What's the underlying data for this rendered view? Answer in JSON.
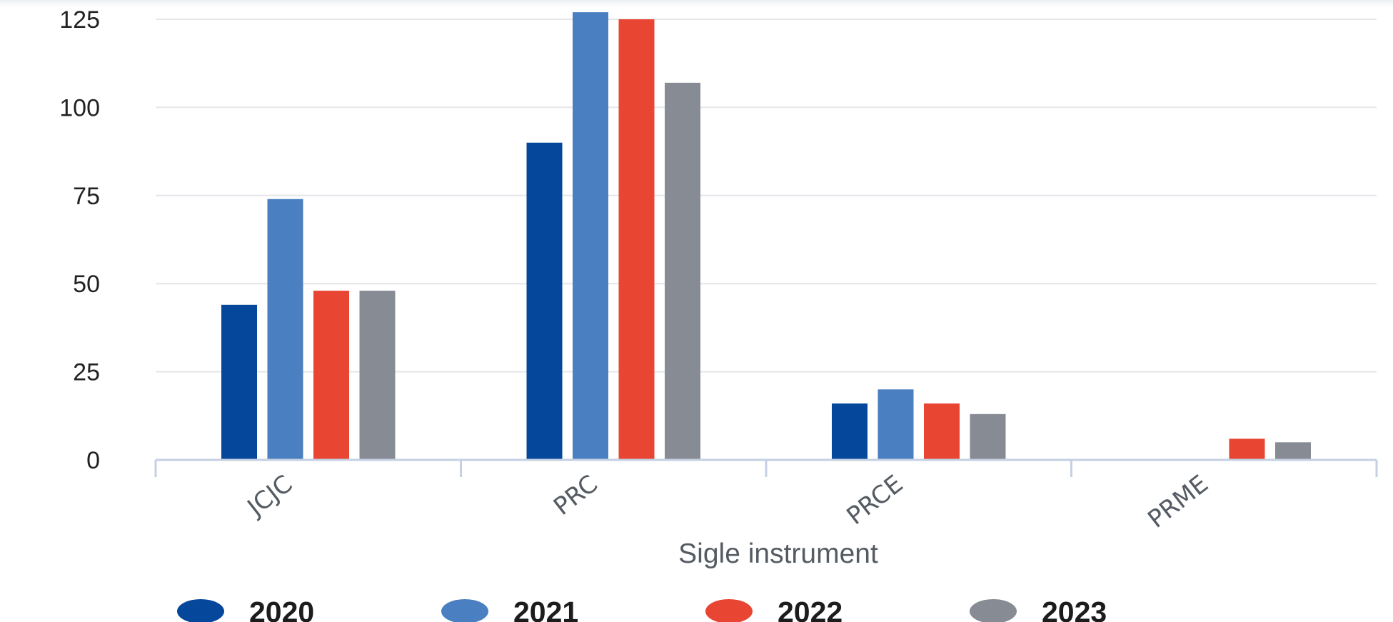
{
  "chart_data": {
    "type": "bar",
    "title": "",
    "xlabel": "Sigle instrument",
    "ylabel": "",
    "ylim": [
      0,
      125
    ],
    "yticks": [
      0,
      25,
      50,
      75,
      100,
      125
    ],
    "grid": true,
    "legend_position": "bottom-left",
    "categories": [
      "JCJC",
      "PRC",
      "PRCE",
      "PRME"
    ],
    "series": [
      {
        "name": "2020",
        "color": "#05479a",
        "values": [
          44,
          90,
          16,
          0
        ]
      },
      {
        "name": "2021",
        "color": "#4a7fc1",
        "values": [
          74,
          127,
          20,
          0
        ]
      },
      {
        "name": "2022",
        "color": "#e84533",
        "values": [
          48,
          125,
          16,
          6
        ]
      },
      {
        "name": "2023",
        "color": "#878b93",
        "values": [
          48,
          107,
          13,
          5
        ]
      }
    ]
  }
}
